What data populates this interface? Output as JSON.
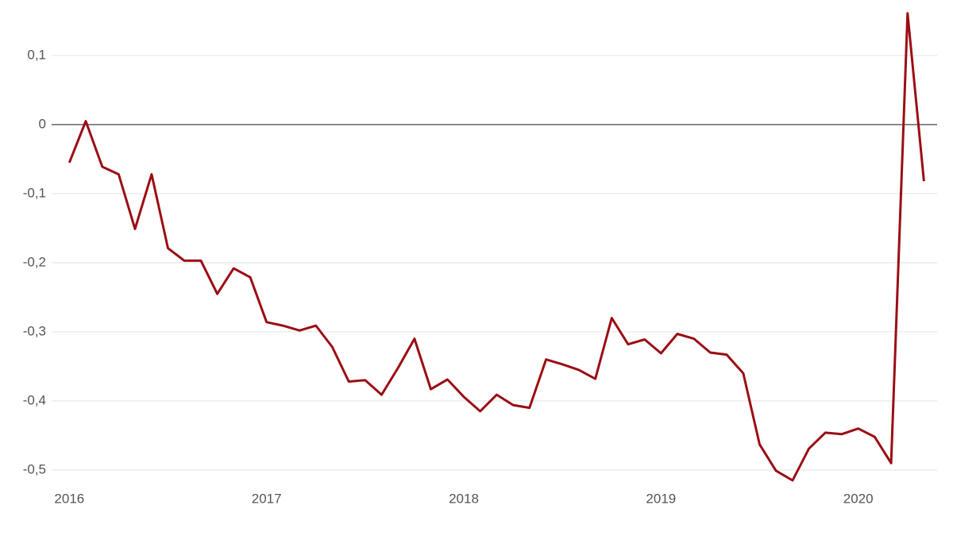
{
  "chart_data": {
    "type": "line",
    "x": [
      2016,
      2016.083,
      2016.167,
      2016.25,
      2016.333,
      2016.417,
      2016.5,
      2016.583,
      2016.667,
      2016.75,
      2016.833,
      2016.917,
      2017,
      2017.083,
      2017.167,
      2017.25,
      2017.333,
      2017.417,
      2017.5,
      2017.583,
      2017.667,
      2017.75,
      2017.833,
      2017.917,
      2018,
      2018.083,
      2018.167,
      2018.25,
      2018.333,
      2018.417,
      2018.5,
      2018.583,
      2018.667,
      2018.75,
      2018.833,
      2018.917,
      2019,
      2019.083,
      2019.167,
      2019.25,
      2019.333,
      2019.417,
      2019.5,
      2019.583,
      2019.667,
      2019.75,
      2019.833,
      2019.917,
      2020,
      2020.083,
      2020.167,
      2020.25,
      2020.333
    ],
    "series": [
      {
        "color": "#9b0d14",
        "values": [
          -0.055,
          0.005,
          -0.061,
          -0.072,
          -0.151,
          -0.072,
          -0.179,
          -0.197,
          -0.197,
          -0.245,
          -0.208,
          -0.221,
          -0.286,
          -0.291,
          -0.298,
          -0.291,
          -0.322,
          -0.372,
          -0.37,
          -0.391,
          -0.352,
          -0.31,
          -0.383,
          -0.369,
          -0.394,
          -0.415,
          -0.391,
          -0.406,
          -0.41,
          -0.34,
          -0.347,
          -0.355,
          -0.368,
          -0.28,
          -0.318,
          -0.311,
          -0.331,
          -0.303,
          -0.31,
          -0.33,
          -0.333,
          -0.36,
          -0.463,
          -0.501,
          -0.515,
          -0.469,
          -0.446,
          -0.448,
          -0.44,
          -0.452,
          -0.49,
          0.161,
          -0.082
        ]
      }
    ],
    "xlim": [
      2015.91,
      2020.4
    ],
    "xticks": [
      2016,
      2017,
      2018,
      2019,
      2020
    ],
    "ylim": [
      -0.53,
      0.17
    ],
    "yticks": [
      {
        "value": -0.5,
        "label": "-0,5"
      },
      {
        "value": -0.4,
        "label": "-0,4"
      },
      {
        "value": -0.3,
        "label": "-0,3"
      },
      {
        "value": -0.2,
        "label": "-0,2"
      },
      {
        "value": -0.1,
        "label": "-0,1"
      },
      0,
      {
        "value": 0.1,
        "label": "0,1"
      }
    ],
    "grid": true
  }
}
